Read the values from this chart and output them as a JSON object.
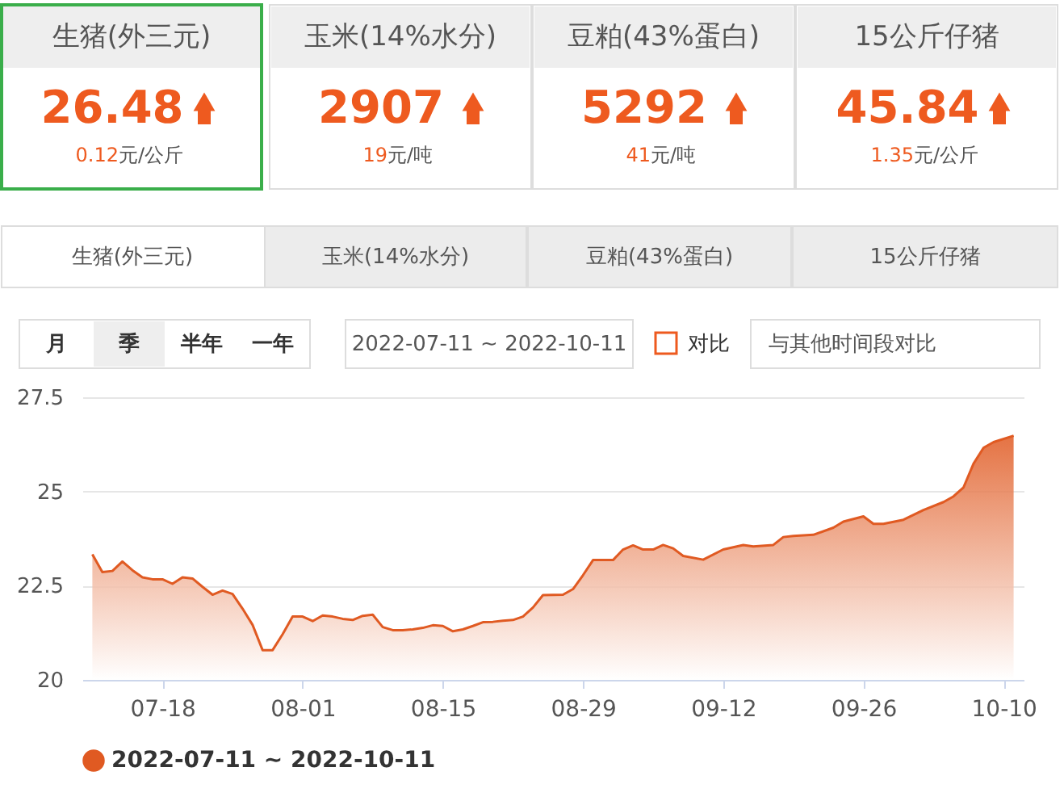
{
  "chart_data": [
    {
      "type": "other",
      "annotations": [
        "生猪(外三元)",
        "26.48",
        "0.12",
        "元/公斤",
        "玉米(14%水分)",
        "2907",
        "19",
        "元/吨",
        "豆粕(43%蛋白)",
        "5292",
        "41",
        "元/吨",
        "15公斤仔猪",
        "45.84",
        "1.35",
        "元/公斤",
        "生猪(外三元)",
        "玉米(14%水分)",
        "豆粕(43%蛋白)",
        "15公斤仔猪",
        "月",
        "季",
        "半年",
        "一年",
        "2022-07-11 ~ 2022-10-11",
        "对比",
        "与其他时间段对比"
      ]
    },
    {
      "type": "area",
      "xlim": [
        "2022-07-10",
        "2022-10-12"
      ],
      "xticks": [
        {
          "value": "2022-07-18",
          "label": "07-18"
        },
        {
          "value": "2022-08-01",
          "label": "08-01"
        },
        {
          "value": "2022-08-15",
          "label": "08-15"
        },
        {
          "value": "2022-08-29",
          "label": "08-29"
        },
        {
          "value": "2022-09-12",
          "label": "09-12"
        },
        {
          "value": "2022-09-26",
          "label": "09-26"
        },
        {
          "value": "2022-10-10",
          "label": "10-10"
        }
      ],
      "ylim": [
        20,
        27.5
      ],
      "yticks": [
        20,
        22.5,
        25,
        27.5
      ],
      "grid": "y",
      "legend": "bottom",
      "series": [
        {
          "name": "2022-07-11 ~ 2022-10-11",
          "color": "#e05a22",
          "x": [
            "2022-07-11",
            "2022-07-12",
            "2022-07-13",
            "2022-07-14",
            "2022-07-15",
            "2022-07-16",
            "2022-07-17",
            "2022-07-18",
            "2022-07-19",
            "2022-07-20",
            "2022-07-21",
            "2022-07-22",
            "2022-07-23",
            "2022-07-24",
            "2022-07-25",
            "2022-07-26",
            "2022-07-27",
            "2022-07-28",
            "2022-07-29",
            "2022-07-30",
            "2022-07-31",
            "2022-08-01",
            "2022-08-02",
            "2022-08-03",
            "2022-08-04",
            "2022-08-05",
            "2022-08-06",
            "2022-08-07",
            "2022-08-08",
            "2022-08-09",
            "2022-08-10",
            "2022-08-11",
            "2022-08-12",
            "2022-08-13",
            "2022-08-14",
            "2022-08-15",
            "2022-08-16",
            "2022-08-17",
            "2022-08-18",
            "2022-08-19",
            "2022-08-20",
            "2022-08-21",
            "2022-08-22",
            "2022-08-23",
            "2022-08-24",
            "2022-08-25",
            "2022-08-27",
            "2022-08-28",
            "2022-08-29",
            "2022-08-30",
            "2022-09-01",
            "2022-09-02",
            "2022-09-03",
            "2022-09-04",
            "2022-09-05",
            "2022-09-06",
            "2022-09-07",
            "2022-09-08",
            "2022-09-10",
            "2022-09-12",
            "2022-09-14",
            "2022-09-15",
            "2022-09-17",
            "2022-09-18",
            "2022-09-19",
            "2022-09-21",
            "2022-09-23",
            "2022-09-24",
            "2022-09-26",
            "2022-09-27",
            "2022-09-28",
            "2022-09-30",
            "2022-10-02",
            "2022-10-04",
            "2022-10-05",
            "2022-10-06",
            "2022-10-07",
            "2022-10-08",
            "2022-10-09",
            "2022-10-11"
          ],
          "values": [
            23.33,
            22.86,
            22.89,
            23.14,
            22.91,
            22.72,
            22.67,
            22.67,
            22.55,
            22.72,
            22.69,
            22.47,
            22.26,
            22.37,
            22.28,
            21.89,
            21.46,
            20.79,
            20.79,
            21.21,
            21.68,
            21.68,
            21.56,
            21.71,
            21.68,
            21.62,
            21.59,
            21.7,
            21.73,
            21.4,
            21.32,
            21.32,
            21.34,
            21.38,
            21.45,
            21.43,
            21.29,
            21.34,
            21.43,
            21.53,
            21.54,
            21.57,
            21.59,
            21.68,
            21.92,
            22.25,
            22.26,
            22.41,
            22.78,
            23.18,
            23.18,
            23.46,
            23.57,
            23.46,
            23.46,
            23.58,
            23.49,
            23.29,
            23.19,
            23.46,
            23.58,
            23.54,
            23.58,
            23.79,
            23.82,
            23.85,
            24.04,
            24.2,
            24.34,
            24.14,
            24.14,
            24.25,
            24.51,
            24.72,
            24.87,
            25.11,
            25.74,
            26.16,
            26.31,
            26.48
          ]
        }
      ]
    }
  ]
}
